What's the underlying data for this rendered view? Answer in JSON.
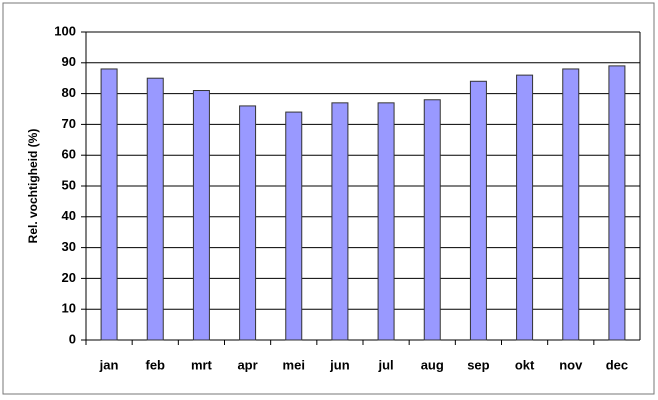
{
  "chart_data": {
    "type": "bar",
    "y_label": "Rel. vochtigheid (%)",
    "categories": [
      "jan",
      "feb",
      "mrt",
      "apr",
      "mei",
      "jun",
      "jul",
      "aug",
      "sep",
      "okt",
      "nov",
      "dec"
    ],
    "values": [
      88,
      85,
      81,
      76,
      74,
      77,
      77,
      78,
      84,
      86,
      88,
      89
    ],
    "color": "#9999ff",
    "ylim": [
      0,
      100
    ],
    "yticks": [
      0,
      10,
      20,
      30,
      40,
      50,
      60,
      70,
      80,
      90,
      100
    ],
    "grid": true
  }
}
